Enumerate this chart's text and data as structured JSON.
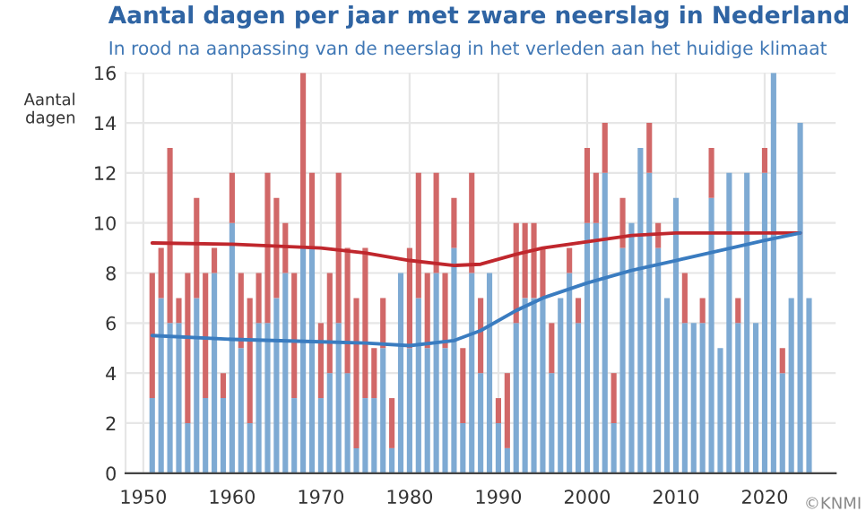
{
  "chart_data": {
    "type": "bar",
    "stacked": true,
    "title": "Aantal dagen per jaar met zware neerslag in Nederland",
    "subtitle": "In rood na aanpassing van de neerslag in het verleden aan het huidige klimaat",
    "ylabel": "Aantal\ndagen",
    "x": [
      1951,
      1952,
      1953,
      1954,
      1955,
      1956,
      1957,
      1958,
      1959,
      1960,
      1961,
      1962,
      1963,
      1964,
      1965,
      1966,
      1967,
      1968,
      1969,
      1970,
      1971,
      1972,
      1973,
      1974,
      1975,
      1976,
      1977,
      1978,
      1979,
      1980,
      1981,
      1982,
      1983,
      1984,
      1985,
      1986,
      1987,
      1988,
      1989,
      1990,
      1991,
      1992,
      1993,
      1994,
      1995,
      1996,
      1997,
      1998,
      1999,
      2000,
      2001,
      2002,
      2003,
      2004,
      2005,
      2006,
      2007,
      2008,
      2009,
      2010,
      2011,
      2012,
      2013,
      2014,
      2015,
      2016,
      2017,
      2018,
      2019,
      2020,
      2021,
      2022,
      2023,
      2024,
      2025
    ],
    "series": [
      {
        "color": "#7eaad3",
        "values": [
          3,
          7,
          6,
          6,
          2,
          7,
          3,
          8,
          3,
          10,
          5,
          2,
          6,
          6,
          7,
          8,
          3,
          9,
          9,
          3,
          4,
          6,
          4,
          1,
          3,
          3,
          5,
          1,
          8,
          5,
          7,
          5,
          8,
          5,
          9,
          2,
          8,
          4,
          8,
          2,
          1,
          6,
          7,
          7,
          7,
          4,
          7,
          8,
          6,
          10,
          10,
          12,
          2,
          9,
          10,
          13,
          12,
          9,
          7,
          11,
          6,
          6,
          6,
          11,
          5,
          12,
          6,
          12,
          6,
          12,
          16,
          4,
          7,
          14,
          7
        ]
      },
      {
        "color": "#d16868",
        "values": [
          5,
          2,
          7,
          1,
          6,
          4,
          5,
          1,
          1,
          2,
          3,
          5,
          2,
          6,
          4,
          2,
          5,
          7,
          3,
          3,
          4,
          6,
          5,
          6,
          6,
          2,
          2,
          2,
          0,
          4,
          5,
          3,
          4,
          3,
          2,
          3,
          4,
          3,
          0,
          1,
          3,
          4,
          3,
          3,
          2,
          2,
          0,
          1,
          1,
          3,
          2,
          2,
          2,
          2,
          0,
          0,
          2,
          1,
          0,
          0,
          2,
          0,
          1,
          2,
          0,
          0,
          1,
          0,
          0,
          1,
          0,
          1,
          0,
          0,
          0
        ]
      },
      {
        "type": "line",
        "color": "#c0272d",
        "x": [
          1951,
          1960,
          1970,
          1975,
          1980,
          1985,
          1988,
          1992,
          1995,
          2000,
          2005,
          2010,
          2015,
          2020,
          2024
        ],
        "values": [
          9.2,
          9.15,
          9.0,
          8.8,
          8.5,
          8.3,
          8.35,
          8.75,
          9.0,
          9.25,
          9.5,
          9.6,
          9.6,
          9.6,
          9.6
        ]
      },
      {
        "type": "line",
        "color": "#3a7cc0",
        "x": [
          1951,
          1960,
          1970,
          1975,
          1980,
          1985,
          1988,
          1992,
          1995,
          2000,
          2005,
          2010,
          2015,
          2020,
          2024
        ],
        "values": [
          5.5,
          5.35,
          5.25,
          5.2,
          5.1,
          5.3,
          5.7,
          6.5,
          7.0,
          7.6,
          8.1,
          8.5,
          8.9,
          9.3,
          9.6
        ]
      }
    ],
    "xlim": [
      1948,
      2028
    ],
    "xticks": [
      1950,
      1960,
      1970,
      1980,
      1990,
      2000,
      2010,
      2020
    ],
    "ylim": [
      0,
      16
    ],
    "yticks": [
      0,
      2,
      4,
      6,
      8,
      10,
      12,
      14,
      16
    ],
    "grid": true,
    "annotations": [
      "©KNMI"
    ]
  }
}
